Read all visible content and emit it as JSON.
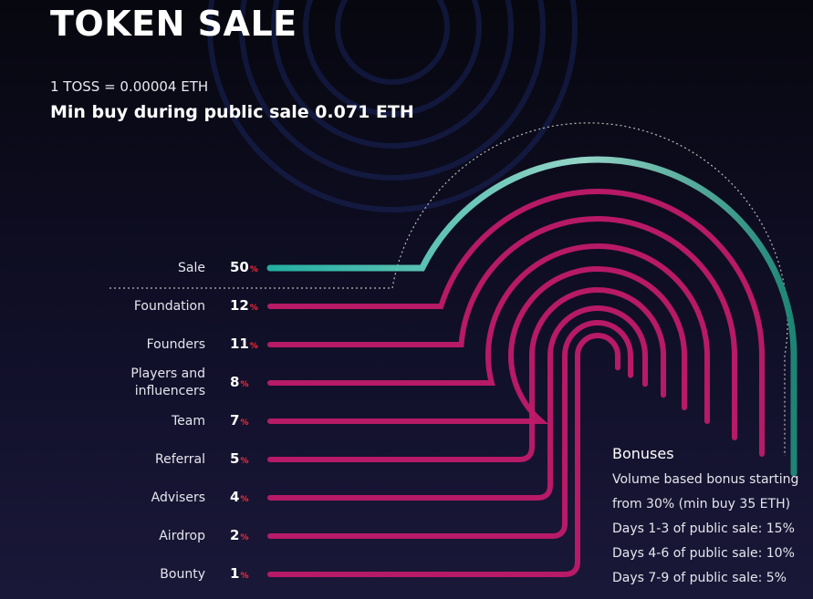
{
  "header": {
    "title": "TOKEN SALE",
    "rate": "1 TOSS = 0.00004 ETH",
    "min_buy": "Min buy during public sale 0.071 ETH"
  },
  "allocation": {
    "unit": "%",
    "rows": [
      {
        "label": "Sale",
        "value": 50
      },
      {
        "label": "Foundation",
        "value": 12
      },
      {
        "label": "Founders",
        "value": 11
      },
      {
        "label": "Players and influencers",
        "value": 8
      },
      {
        "label": "Team",
        "value": 7
      },
      {
        "label": "Referral",
        "value": 5
      },
      {
        "label": "Advisers",
        "value": 4
      },
      {
        "label": "Airdrop",
        "value": 2
      },
      {
        "label": "Bounty",
        "value": 1
      }
    ]
  },
  "bonuses": {
    "title": "Bonuses",
    "items": [
      "Volume based bonus starting",
      "from 30% (min buy 35 ETH)",
      "Days 1-3 of public sale: 15%",
      "Days 4-6 of public sale: 10%",
      "Days 7-9 of public sale: 5%"
    ]
  }
}
